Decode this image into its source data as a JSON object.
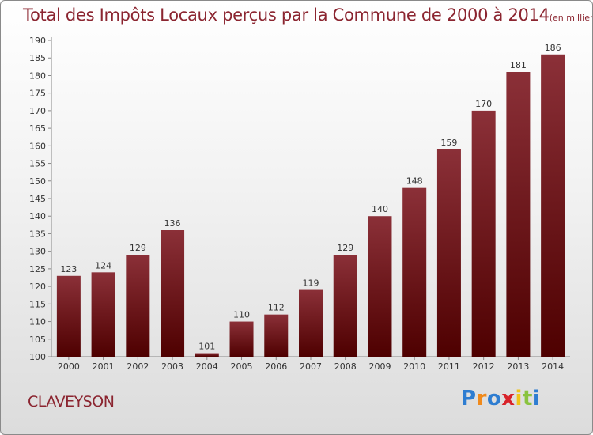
{
  "header": {
    "title": "Total des Impôts Locaux perçus par la Commune de 2000 à 2014",
    "unit": "(en milliers d'€)"
  },
  "footer": {
    "commune": "CLAVEYSON",
    "logo_letters": [
      "P",
      "r",
      "o",
      "x",
      "i",
      "t",
      "i"
    ]
  },
  "colors": {
    "bar_top": "#8b3038",
    "bar_bottom": "#4e0000",
    "title": "#8b2530",
    "axis": "#888888",
    "logo": [
      "#2e7dd1",
      "#f08a1c",
      "#2e7dd1",
      "#d8232a",
      "#f0c419",
      "#8ac33f",
      "#2e7dd1"
    ]
  },
  "chart_data": {
    "type": "bar",
    "title": "Total des Impôts Locaux perçus par la Commune de 2000 à 2014",
    "xlabel": "",
    "ylabel": "en milliers d'€",
    "categories": [
      "2000",
      "2001",
      "2002",
      "2003",
      "2004",
      "2005",
      "2006",
      "2007",
      "2008",
      "2009",
      "2010",
      "2011",
      "2012",
      "2013",
      "2014"
    ],
    "values": [
      123,
      124,
      129,
      136,
      101,
      110,
      112,
      119,
      129,
      140,
      148,
      159,
      170,
      181,
      186
    ],
    "ylim": [
      100,
      190
    ],
    "yticks": [
      100,
      105,
      110,
      115,
      120,
      125,
      130,
      135,
      140,
      145,
      150,
      155,
      160,
      165,
      170,
      175,
      180,
      185,
      190
    ],
    "grid": false,
    "legend": "none"
  }
}
